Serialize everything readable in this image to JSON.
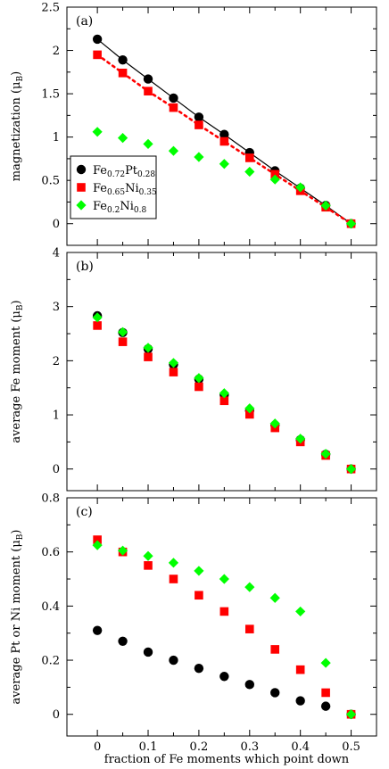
{
  "figure": {
    "xlabel": "fraction of Fe moments which point down",
    "x_tick_labels": [
      "0",
      "0.1",
      "0.2",
      "0.3",
      "0.4",
      "0.5"
    ]
  },
  "colors": {
    "FePt": "#000000",
    "FeNi35": "#ff0000",
    "FeNi80": "#00ff00"
  },
  "chart_data": [
    {
      "type": "scatter",
      "panel_label": "(a)",
      "ylabel": "magnetization (μ_B)",
      "ylim": [
        -0.25,
        2.5
      ],
      "xlim": [
        -0.06,
        0.55
      ],
      "y_tick_labels": [
        "0",
        "0.5",
        "1",
        "1.5",
        "2",
        "2.5"
      ],
      "y_ticks": [
        0,
        0.5,
        1,
        1.5,
        2,
        2.5
      ],
      "legend": {
        "placement": "left",
        "entries": [
          {
            "series": "FePt",
            "base": "Fe",
            "sub1": "0.72",
            "el2": "Pt",
            "sub2": "0.28"
          },
          {
            "series": "FeNi35",
            "base": "Fe",
            "sub1": "0.65",
            "el2": "Ni",
            "sub2": "0.35"
          },
          {
            "series": "FeNi80",
            "base": "Fe",
            "sub1": "0.2",
            "el2": "Ni",
            "sub2": "0.8"
          }
        ]
      },
      "x": [
        0,
        0.05,
        0.1,
        0.15,
        0.2,
        0.25,
        0.3,
        0.35,
        0.4,
        0.45,
        0.5
      ],
      "series": [
        {
          "key": "FePt",
          "marker": "circle",
          "line": "solid",
          "values": [
            2.13,
            1.89,
            1.67,
            1.45,
            1.23,
            1.03,
            0.82,
            0.61,
            0.41,
            0.21,
            0.0
          ]
        },
        {
          "key": "FeNi35",
          "marker": "square",
          "line": "dotted",
          "values": [
            1.95,
            1.74,
            1.53,
            1.34,
            1.14,
            0.95,
            0.76,
            0.57,
            0.38,
            0.19,
            0.0
          ]
        },
        {
          "key": "FeNi80",
          "marker": "diamond",
          "line": "none",
          "values": [
            1.06,
            0.99,
            0.92,
            0.84,
            0.77,
            0.69,
            0.6,
            0.51,
            0.42,
            0.21,
            0.0
          ]
        }
      ]
    },
    {
      "type": "scatter",
      "panel_label": "(b)",
      "ylabel": "average Fe moment (μ_B)",
      "ylim": [
        -0.4,
        4
      ],
      "xlim": [
        -0.06,
        0.55
      ],
      "y_tick_labels": [
        "0",
        "1",
        "2",
        "3",
        "4"
      ],
      "y_ticks": [
        0,
        1,
        2,
        3,
        4
      ],
      "x": [
        0,
        0.05,
        0.1,
        0.15,
        0.2,
        0.25,
        0.3,
        0.35,
        0.4,
        0.45,
        0.5
      ],
      "series": [
        {
          "key": "FePt",
          "marker": "circle",
          "line": "none",
          "values": [
            2.83,
            2.52,
            2.22,
            1.93,
            1.66,
            1.37,
            1.08,
            0.81,
            0.54,
            0.27,
            0.0
          ]
        },
        {
          "key": "FeNi35",
          "marker": "square",
          "line": "none",
          "values": [
            2.65,
            2.35,
            2.07,
            1.79,
            1.52,
            1.26,
            1.01,
            0.76,
            0.5,
            0.25,
            0.0
          ]
        },
        {
          "key": "FeNi80",
          "marker": "diamond",
          "line": "none",
          "values": [
            2.8,
            2.53,
            2.24,
            1.96,
            1.68,
            1.4,
            1.12,
            0.84,
            0.56,
            0.28,
            0.0
          ]
        }
      ]
    },
    {
      "type": "scatter",
      "panel_label": "(c)",
      "ylabel": "average Pt or Ni moment (μ_B)",
      "ylim": [
        -0.08,
        0.8
      ],
      "xlim": [
        -0.06,
        0.55
      ],
      "y_tick_labels": [
        "0",
        "0.2",
        "0.4",
        "0.6",
        "0.8"
      ],
      "y_ticks": [
        0,
        0.2,
        0.4,
        0.6,
        0.8
      ],
      "x": [
        0,
        0.05,
        0.1,
        0.15,
        0.2,
        0.25,
        0.3,
        0.35,
        0.4,
        0.45,
        0.5
      ],
      "series": [
        {
          "key": "FePt",
          "marker": "circle",
          "line": "none",
          "values": [
            0.31,
            0.27,
            0.23,
            0.2,
            0.17,
            0.14,
            0.11,
            0.08,
            0.05,
            0.03,
            0.0
          ]
        },
        {
          "key": "FeNi35",
          "marker": "square",
          "line": "none",
          "values": [
            0.645,
            0.6,
            0.55,
            0.5,
            0.44,
            0.38,
            0.315,
            0.24,
            0.165,
            0.08,
            0.0
          ]
        },
        {
          "key": "FeNi80",
          "marker": "diamond",
          "line": "none",
          "values": [
            0.625,
            0.605,
            0.585,
            0.56,
            0.53,
            0.5,
            0.47,
            0.43,
            0.38,
            0.19,
            0.0
          ]
        }
      ]
    }
  ]
}
